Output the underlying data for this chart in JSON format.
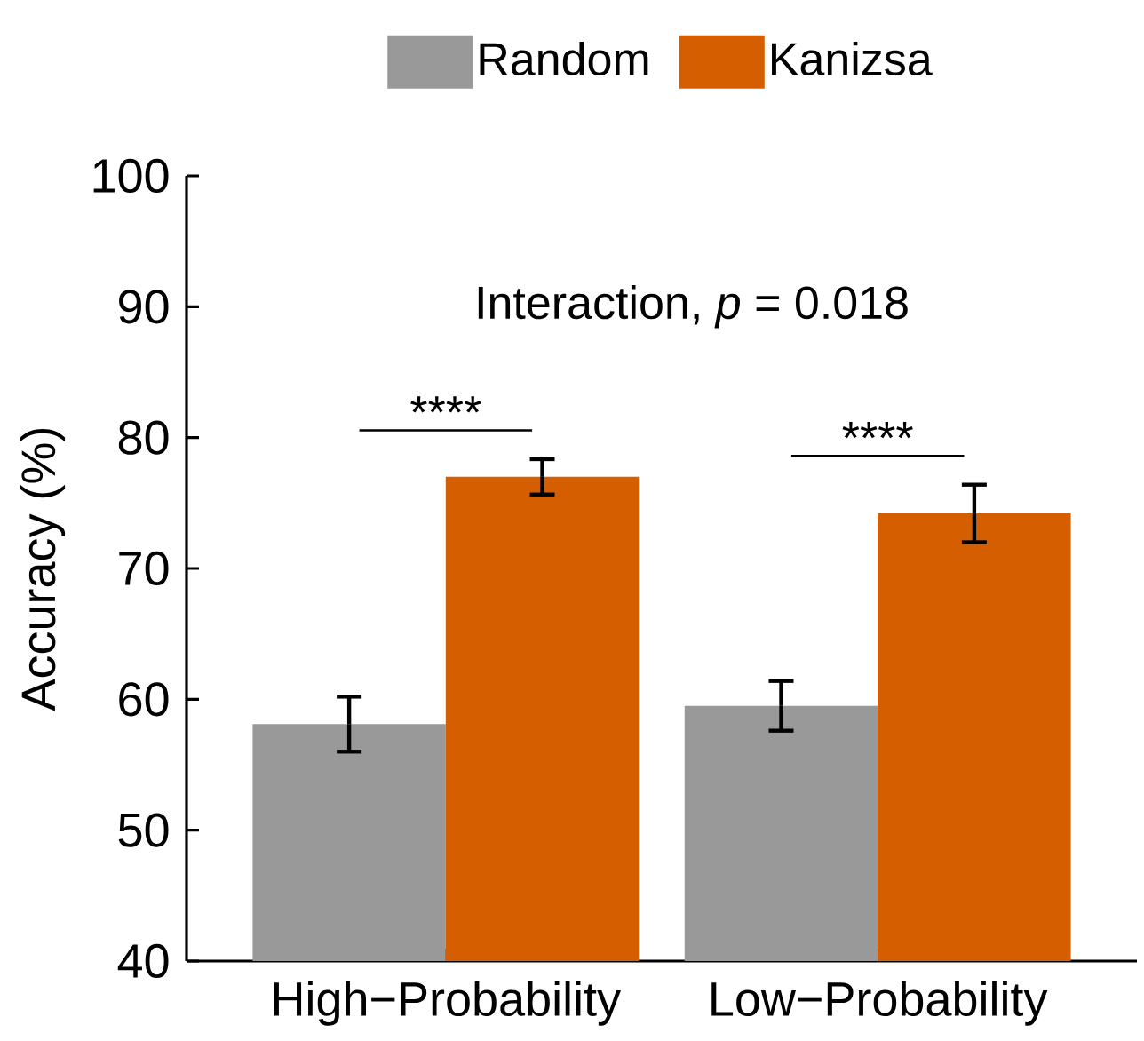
{
  "chart_data": {
    "type": "bar",
    "ylabel": "Accuracy (%)",
    "categories": [
      "High−Probability",
      "Low−Probability"
    ],
    "series": [
      {
        "name": "Random",
        "color": "#999999",
        "values": [
          58.1,
          59.5
        ],
        "errors": [
          2.1,
          1.9
        ]
      },
      {
        "name": "Kanizsa",
        "color": "#d55e00",
        "values": [
          77.0,
          74.2
        ],
        "errors": [
          1.35,
          2.2
        ]
      }
    ],
    "ylim": [
      40,
      100
    ],
    "yticks": [
      40,
      50,
      60,
      70,
      80,
      90,
      100
    ],
    "grid": false,
    "legend": "top",
    "annotations": [
      "Interaction, *p* = 0.018",
      "****",
      "****"
    ]
  }
}
